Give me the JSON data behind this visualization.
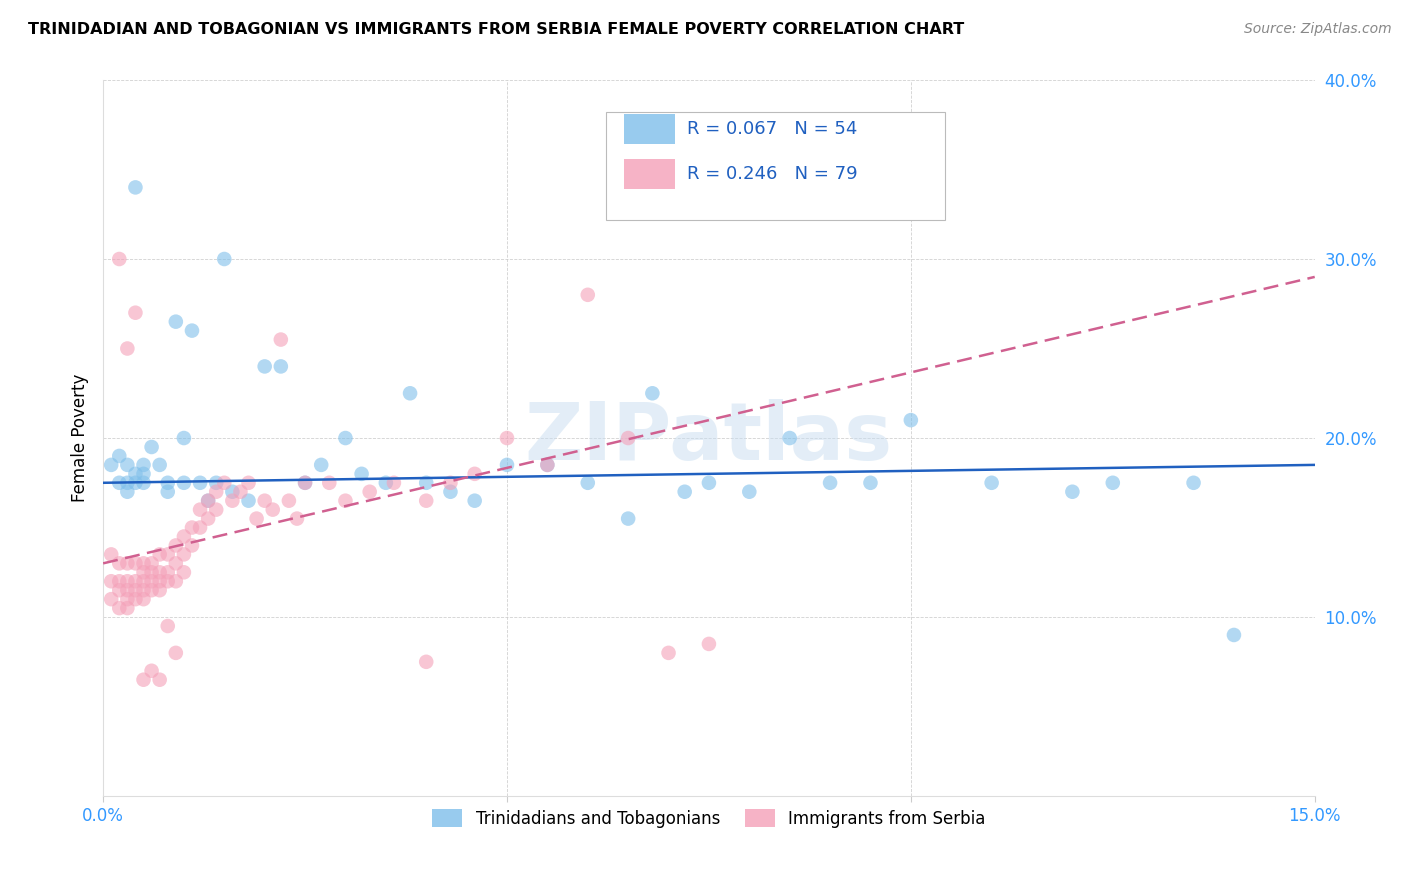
{
  "title": "TRINIDADIAN AND TOBAGONIAN VS IMMIGRANTS FROM SERBIA FEMALE POVERTY CORRELATION CHART",
  "source": "Source: ZipAtlas.com",
  "ylabel": "Female Poverty",
  "xlim": [
    0.0,
    0.15
  ],
  "ylim": [
    0.0,
    0.4
  ],
  "blue_color": "#7fbfea",
  "pink_color": "#f4a0b8",
  "blue_line_color": "#2060c0",
  "pink_line_color": "#d06090",
  "legend_R1": "R = 0.067",
  "legend_N1": "N = 54",
  "legend_R2": "R = 0.246",
  "legend_N2": "N = 79",
  "watermark": "ZIPatlas",
  "blue_scatter_x": [
    0.001,
    0.002,
    0.002,
    0.003,
    0.003,
    0.003,
    0.004,
    0.004,
    0.005,
    0.005,
    0.005,
    0.006,
    0.007,
    0.008,
    0.008,
    0.009,
    0.01,
    0.01,
    0.011,
    0.012,
    0.013,
    0.014,
    0.015,
    0.016,
    0.018,
    0.02,
    0.022,
    0.025,
    0.027,
    0.03,
    0.032,
    0.035,
    0.038,
    0.04,
    0.043,
    0.046,
    0.05,
    0.055,
    0.06,
    0.065,
    0.068,
    0.072,
    0.075,
    0.08,
    0.085,
    0.09,
    0.095,
    0.1,
    0.11,
    0.12,
    0.125,
    0.135,
    0.14,
    0.004
  ],
  "blue_scatter_y": [
    0.185,
    0.19,
    0.175,
    0.185,
    0.175,
    0.17,
    0.18,
    0.175,
    0.185,
    0.18,
    0.175,
    0.195,
    0.185,
    0.175,
    0.17,
    0.265,
    0.2,
    0.175,
    0.26,
    0.175,
    0.165,
    0.175,
    0.3,
    0.17,
    0.165,
    0.24,
    0.24,
    0.175,
    0.185,
    0.2,
    0.18,
    0.175,
    0.225,
    0.175,
    0.17,
    0.165,
    0.185,
    0.185,
    0.175,
    0.155,
    0.225,
    0.17,
    0.175,
    0.17,
    0.2,
    0.175,
    0.175,
    0.21,
    0.175,
    0.17,
    0.175,
    0.175,
    0.09,
    0.34
  ],
  "pink_scatter_x": [
    0.001,
    0.001,
    0.001,
    0.002,
    0.002,
    0.002,
    0.002,
    0.003,
    0.003,
    0.003,
    0.003,
    0.003,
    0.004,
    0.004,
    0.004,
    0.004,
    0.005,
    0.005,
    0.005,
    0.005,
    0.005,
    0.006,
    0.006,
    0.006,
    0.006,
    0.007,
    0.007,
    0.007,
    0.007,
    0.008,
    0.008,
    0.008,
    0.009,
    0.009,
    0.009,
    0.01,
    0.01,
    0.01,
    0.011,
    0.011,
    0.012,
    0.012,
    0.013,
    0.013,
    0.014,
    0.014,
    0.015,
    0.016,
    0.017,
    0.018,
    0.019,
    0.02,
    0.021,
    0.022,
    0.023,
    0.024,
    0.025,
    0.028,
    0.03,
    0.033,
    0.036,
    0.04,
    0.043,
    0.046,
    0.05,
    0.055,
    0.06,
    0.065,
    0.07,
    0.075,
    0.002,
    0.003,
    0.004,
    0.005,
    0.006,
    0.007,
    0.008,
    0.009,
    0.04
  ],
  "pink_scatter_y": [
    0.135,
    0.12,
    0.11,
    0.13,
    0.12,
    0.115,
    0.105,
    0.13,
    0.12,
    0.115,
    0.11,
    0.105,
    0.13,
    0.12,
    0.115,
    0.11,
    0.13,
    0.125,
    0.12,
    0.115,
    0.11,
    0.13,
    0.125,
    0.12,
    0.115,
    0.135,
    0.125,
    0.12,
    0.115,
    0.135,
    0.125,
    0.12,
    0.14,
    0.13,
    0.12,
    0.145,
    0.135,
    0.125,
    0.15,
    0.14,
    0.16,
    0.15,
    0.165,
    0.155,
    0.17,
    0.16,
    0.175,
    0.165,
    0.17,
    0.175,
    0.155,
    0.165,
    0.16,
    0.255,
    0.165,
    0.155,
    0.175,
    0.175,
    0.165,
    0.17,
    0.175,
    0.165,
    0.175,
    0.18,
    0.2,
    0.185,
    0.28,
    0.2,
    0.08,
    0.085,
    0.3,
    0.25,
    0.27,
    0.065,
    0.07,
    0.065,
    0.095,
    0.08,
    0.075
  ]
}
